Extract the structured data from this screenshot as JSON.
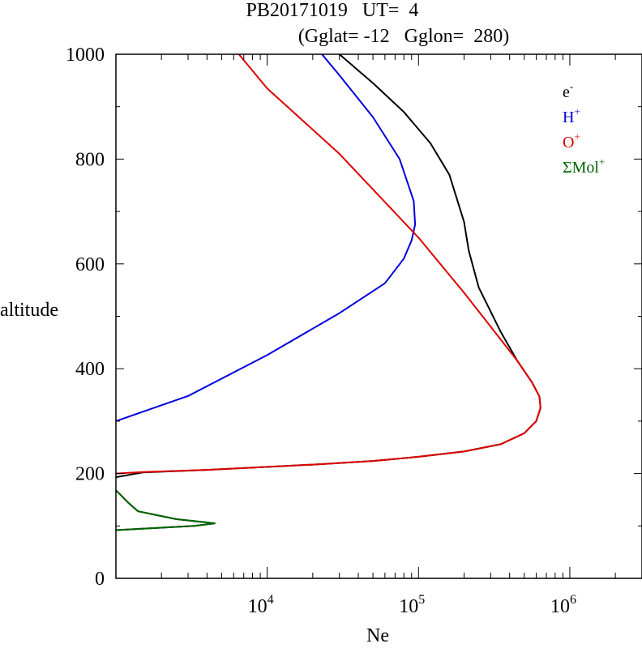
{
  "chart_data": {
    "type": "line",
    "title_line1": "PB20171019   UT=  4",
    "title_line2": "(Gglat= -12   Gglon=  280)",
    "xlabel": "Ne",
    "ylabel": "altitude",
    "x_scale": "log",
    "xlim": [
      1000,
      3000000
    ],
    "ylim": [
      0,
      1000
    ],
    "y_ticks": [
      0,
      200,
      400,
      600,
      800,
      1000
    ],
    "y_tick_labels": [
      "0",
      "200",
      "400",
      "600",
      "800",
      "1000"
    ],
    "x_ticks": [
      10000,
      100000,
      1000000
    ],
    "x_tick_labels": [
      {
        "base": "10",
        "exp": "4"
      },
      {
        "base": "10",
        "exp": "5"
      },
      {
        "base": "10",
        "exp": "6"
      }
    ],
    "grid": false,
    "legend_position": "top-right",
    "series": [
      {
        "name": "e",
        "sup": "-",
        "color": "#000000",
        "points": [
          [
            1000,
            92
          ],
          [
            3300,
            100
          ],
          [
            4500,
            105
          ],
          [
            2500,
            113
          ],
          [
            1400,
            128
          ],
          [
            1200,
            145
          ],
          [
            1050,
            162
          ],
          [
            1000,
            168
          ]
        ]
      },
      {
        "name": "e",
        "sup": "-",
        "color": "#000000",
        "points": [
          [
            1000,
            193
          ],
          [
            1500,
            202
          ],
          [
            4000,
            207
          ],
          [
            20000,
            217
          ],
          [
            50000,
            224
          ],
          [
            100000,
            232
          ],
          [
            200000,
            242
          ],
          [
            350000,
            256
          ],
          [
            500000,
            277
          ],
          [
            600000,
            300
          ],
          [
            640000,
            325
          ],
          [
            630000,
            347
          ],
          [
            560000,
            375
          ],
          [
            450000,
            415
          ],
          [
            350000,
            470
          ],
          [
            250000,
            555
          ],
          [
            215000,
            625
          ],
          [
            200000,
            680
          ],
          [
            160000,
            770
          ],
          [
            120000,
            830
          ],
          [
            80000,
            890
          ],
          [
            50000,
            945
          ],
          [
            30000,
            1000
          ]
        ]
      },
      {
        "name": "H",
        "sup": "+",
        "color": "#0000dd",
        "points": [
          [
            1000,
            300
          ],
          [
            3000,
            348
          ],
          [
            10000,
            426
          ],
          [
            30000,
            506
          ],
          [
            60000,
            563
          ],
          [
            80000,
            610
          ],
          [
            90000,
            645
          ],
          [
            95000,
            675
          ],
          [
            93000,
            720
          ],
          [
            75000,
            800
          ],
          [
            50000,
            880
          ],
          [
            30000,
            960
          ],
          [
            23000,
            1000
          ]
        ]
      },
      {
        "name": "O",
        "sup": "+",
        "color": "#dd0000",
        "points": [
          [
            1000,
            200
          ],
          [
            1500,
            203
          ],
          [
            4000,
            207
          ],
          [
            20000,
            217
          ],
          [
            50000,
            224
          ],
          [
            100000,
            232
          ],
          [
            200000,
            242
          ],
          [
            350000,
            256
          ],
          [
            500000,
            277
          ],
          [
            600000,
            300
          ],
          [
            640000,
            325
          ],
          [
            630000,
            347
          ],
          [
            560000,
            375
          ],
          [
            450000,
            415
          ],
          [
            300000,
            480
          ],
          [
            200000,
            545
          ],
          [
            100000,
            650
          ],
          [
            30000,
            810
          ],
          [
            10000,
            935
          ],
          [
            6500,
            1000
          ]
        ]
      },
      {
        "name": "ΣMol",
        "sup": "+",
        "color": "#006400",
        "points": [
          [
            1000,
            92
          ],
          [
            3300,
            100
          ],
          [
            4500,
            105
          ],
          [
            2500,
            113
          ],
          [
            1400,
            128
          ],
          [
            1200,
            145
          ],
          [
            1050,
            162
          ],
          [
            1000,
            168
          ]
        ]
      }
    ],
    "legend": [
      {
        "label": "e",
        "sup": "-",
        "color": "#000000"
      },
      {
        "label": "H",
        "sup": "+",
        "color": "#0000dd"
      },
      {
        "label": "O",
        "sup": "+",
        "color": "#dd0000"
      },
      {
        "label": "ΣMol",
        "sup": "+",
        "color": "#006400"
      }
    ]
  }
}
